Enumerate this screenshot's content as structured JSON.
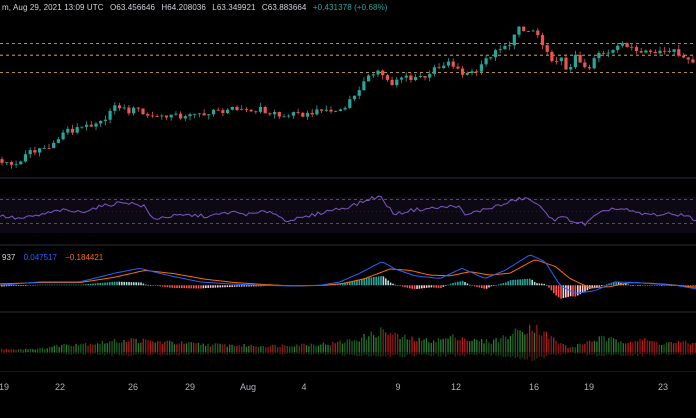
{
  "header": {
    "title_fragment": "m, Aug 29, 2021 13:09 UTC",
    "open": "O63.456646",
    "high": "H64.208036",
    "low": "L63.349921",
    "close": "C63.883664",
    "change": "+0.431378 (+0.68%)"
  },
  "macd_header": {
    "prefix": "937",
    "macd": "0.047517",
    "signal": "−0.184421"
  },
  "colors": {
    "up": "#26a69a",
    "down": "#ef5350",
    "rsi": "#7e57c2",
    "macd": "#2962ff",
    "signal": "#ff6d00",
    "level": "#f0c040",
    "axis_text": "#b2b5be"
  },
  "x_axis": {
    "ticks": [
      "19",
      "22",
      "26",
      "29",
      "Aug",
      "4",
      "9",
      "12",
      "16",
      "19",
      "23"
    ]
  },
  "chart_data": {
    "type": "candlestick",
    "price_levels": [
      68.5,
      66.9,
      64.5
    ],
    "price_path": [
      [
        0,
        52.5
      ],
      [
        7,
        52.2
      ],
      [
        12,
        51.9
      ],
      [
        18,
        51.6
      ],
      [
        23,
        52.0
      ],
      [
        29,
        52.8
      ],
      [
        35,
        53.6
      ],
      [
        40,
        53.4
      ],
      [
        45,
        54.1
      ],
      [
        50,
        54.0
      ],
      [
        55,
        54.5
      ],
      [
        62,
        54.9
      ],
      [
        66,
        55.9
      ],
      [
        70,
        56.7
      ],
      [
        76,
        56.1
      ],
      [
        81,
        56.9
      ],
      [
        85,
        57.3
      ],
      [
        89,
        57.0
      ],
      [
        95,
        56.8
      ],
      [
        101,
        57.2
      ],
      [
        106,
        57.6
      ],
      [
        112,
        58.6
      ],
      [
        117,
        59.5
      ],
      [
        122,
        59.8
      ],
      [
        127,
        59.7
      ],
      [
        131,
        59.2
      ],
      [
        136,
        59.0
      ],
      [
        142,
        59.9
      ],
      [
        145,
        59.4
      ],
      [
        150,
        58.4
      ],
      [
        155,
        58.6
      ],
      [
        162,
        58.5
      ],
      [
        168,
        58.5
      ],
      [
        174,
        58.6
      ],
      [
        180,
        58.5
      ],
      [
        186,
        58.3
      ],
      [
        191,
        58.7
      ],
      [
        197,
        58.4
      ],
      [
        203,
        58.7
      ],
      [
        208,
        58.9
      ],
      [
        214,
        58.7
      ],
      [
        220,
        59.3
      ],
      [
        225,
        59.0
      ],
      [
        231,
        59.4
      ],
      [
        237,
        59.4
      ],
      [
        242,
        59.0
      ],
      [
        248,
        59.6
      ],
      [
        253,
        59.3
      ],
      [
        258,
        59.0
      ],
      [
        263,
        59.7
      ],
      [
        268,
        59.1
      ],
      [
        274,
        58.8
      ],
      [
        279,
        59.0
      ],
      [
        285,
        58.2
      ],
      [
        290,
        58.5
      ],
      [
        296,
        58.8
      ],
      [
        301,
        58.6
      ],
      [
        306,
        58.6
      ],
      [
        313,
        58.8
      ],
      [
        319,
        59.1
      ],
      [
        324,
        59.0
      ],
      [
        330,
        59.5
      ],
      [
        336,
        59.0
      ],
      [
        342,
        59.3
      ],
      [
        347,
        59.5
      ],
      [
        352,
        60.3
      ],
      [
        357,
        61.0
      ],
      [
        362,
        61.9
      ],
      [
        367,
        62.8
      ],
      [
        372,
        63.6
      ],
      [
        377,
        64.2
      ],
      [
        382,
        65.2
      ],
      [
        388,
        64.0
      ],
      [
        392,
        63.6
      ],
      [
        396,
        62.5
      ],
      [
        401,
        63.3
      ],
      [
        406,
        63.7
      ],
      [
        411,
        64.0
      ],
      [
        416,
        63.7
      ],
      [
        422,
        64.0
      ],
      [
        428,
        63.9
      ],
      [
        433,
        64.3
      ],
      [
        438,
        64.9
      ],
      [
        443,
        65.0
      ],
      [
        448,
        65.3
      ],
      [
        453,
        65.8
      ],
      [
        458,
        65.4
      ],
      [
        462,
        64.9
      ],
      [
        467,
        64.2
      ],
      [
        472,
        64.6
      ],
      [
        477,
        64.6
      ],
      [
        482,
        65.0
      ],
      [
        487,
        65.9
      ],
      [
        492,
        66.3
      ],
      [
        496,
        66.9
      ],
      [
        501,
        67.4
      ],
      [
        506,
        67.7
      ],
      [
        511,
        68.1
      ],
      [
        516,
        68.8
      ],
      [
        520,
        69.9
      ],
      [
        524,
        70.6
      ],
      [
        528,
        70.2
      ],
      [
        533,
        70.2
      ],
      [
        537,
        70.3
      ],
      [
        542,
        69.8
      ],
      [
        546,
        68.2
      ],
      [
        551,
        67.2
      ],
      [
        556,
        66.5
      ],
      [
        561,
        65.8
      ],
      [
        565,
        66.6
      ],
      [
        570,
        65.0
      ],
      [
        575,
        65.4
      ],
      [
        580,
        66.6
      ],
      [
        585,
        65.8
      ],
      [
        590,
        65.0
      ],
      [
        596,
        65.0
      ],
      [
        600,
        66.8
      ],
      [
        606,
        67.4
      ],
      [
        611,
        67.3
      ],
      [
        616,
        67.7
      ],
      [
        621,
        68.3
      ],
      [
        627,
        68.3
      ],
      [
        632,
        68.1
      ],
      [
        638,
        68.2
      ],
      [
        643,
        67.6
      ],
      [
        648,
        67.6
      ],
      [
        654,
        67.4
      ],
      [
        659,
        67.2
      ],
      [
        664,
        67.6
      ],
      [
        670,
        67.8
      ],
      [
        675,
        67.6
      ],
      [
        681,
        67.3
      ],
      [
        686,
        67.0
      ],
      [
        692,
        66.4
      ],
      [
        696,
        65.9
      ]
    ],
    "rsi_path": [
      [
        0,
        43
      ],
      [
        20,
        38
      ],
      [
        40,
        44
      ],
      [
        60,
        52
      ],
      [
        80,
        49
      ],
      [
        100,
        58
      ],
      [
        112,
        62
      ],
      [
        125,
        66
      ],
      [
        135,
        62
      ],
      [
        145,
        58
      ],
      [
        152,
        38
      ],
      [
        170,
        42
      ],
      [
        190,
        44
      ],
      [
        210,
        42
      ],
      [
        230,
        49
      ],
      [
        250,
        45
      ],
      [
        270,
        51
      ],
      [
        285,
        36
      ],
      [
        300,
        38
      ],
      [
        315,
        45
      ],
      [
        330,
        52
      ],
      [
        345,
        56
      ],
      [
        360,
        64
      ],
      [
        372,
        72
      ],
      [
        380,
        75
      ],
      [
        386,
        62
      ],
      [
        395,
        45
      ],
      [
        410,
        52
      ],
      [
        430,
        55
      ],
      [
        445,
        57
      ],
      [
        458,
        60
      ],
      [
        465,
        43
      ],
      [
        475,
        49
      ],
      [
        490,
        56
      ],
      [
        505,
        62
      ],
      [
        515,
        69
      ],
      [
        525,
        72
      ],
      [
        535,
        65
      ],
      [
        545,
        48
      ],
      [
        555,
        37
      ],
      [
        565,
        40
      ],
      [
        575,
        33
      ],
      [
        585,
        29
      ],
      [
        595,
        42
      ],
      [
        610,
        55
      ],
      [
        625,
        53
      ],
      [
        640,
        46
      ],
      [
        655,
        45
      ],
      [
        670,
        45
      ],
      [
        685,
        45
      ],
      [
        690,
        40
      ],
      [
        696,
        35
      ]
    ],
    "rsi_levels": [
      70,
      30
    ],
    "macd_path": [
      [
        0,
        0.0
      ],
      [
        40,
        0.05
      ],
      [
        80,
        0.05
      ],
      [
        115,
        0.18
      ],
      [
        140,
        0.25
      ],
      [
        170,
        0.14
      ],
      [
        200,
        0.05
      ],
      [
        230,
        0.02
      ],
      [
        260,
        0.0
      ],
      [
        290,
        -0.01
      ],
      [
        320,
        0.0
      ],
      [
        340,
        0.05
      ],
      [
        360,
        0.18
      ],
      [
        382,
        0.35
      ],
      [
        395,
        0.24
      ],
      [
        415,
        0.14
      ],
      [
        440,
        0.1
      ],
      [
        462,
        0.25
      ],
      [
        485,
        0.1
      ],
      [
        505,
        0.22
      ],
      [
        530,
        0.45
      ],
      [
        545,
        0.35
      ],
      [
        560,
        0.0
      ],
      [
        575,
        -0.12
      ],
      [
        595,
        -0.08
      ],
      [
        615,
        0.05
      ],
      [
        635,
        0.04
      ],
      [
        655,
        0.02
      ],
      [
        675,
        0.0
      ],
      [
        696,
        -0.05
      ]
    ],
    "signal_path": [
      [
        0,
        0.02
      ],
      [
        40,
        0.04
      ],
      [
        80,
        0.04
      ],
      [
        115,
        0.12
      ],
      [
        145,
        0.22
      ],
      [
        175,
        0.17
      ],
      [
        205,
        0.09
      ],
      [
        235,
        0.04
      ],
      [
        265,
        0.01
      ],
      [
        295,
        -0.01
      ],
      [
        325,
        0.0
      ],
      [
        345,
        0.03
      ],
      [
        365,
        0.1
      ],
      [
        390,
        0.24
      ],
      [
        410,
        0.22
      ],
      [
        430,
        0.15
      ],
      [
        450,
        0.14
      ],
      [
        470,
        0.2
      ],
      [
        490,
        0.15
      ],
      [
        510,
        0.18
      ],
      [
        535,
        0.38
      ],
      [
        555,
        0.28
      ],
      [
        570,
        0.1
      ],
      [
        590,
        -0.04
      ],
      [
        610,
        -0.02
      ],
      [
        630,
        0.04
      ],
      [
        650,
        0.03
      ],
      [
        670,
        0.01
      ],
      [
        696,
        -0.03
      ]
    ],
    "volume_path": [
      [
        0,
        0.1
      ],
      [
        40,
        0.12
      ],
      [
        60,
        0.25
      ],
      [
        75,
        0.3
      ],
      [
        95,
        0.32
      ],
      [
        115,
        0.4
      ],
      [
        130,
        0.45
      ],
      [
        150,
        0.38
      ],
      [
        170,
        0.35
      ],
      [
        190,
        0.3
      ],
      [
        210,
        0.27
      ],
      [
        230,
        0.25
      ],
      [
        250,
        0.23
      ],
      [
        270,
        0.22
      ],
      [
        290,
        0.26
      ],
      [
        310,
        0.28
      ],
      [
        330,
        0.3
      ],
      [
        350,
        0.42
      ],
      [
        368,
        0.58
      ],
      [
        382,
        0.78
      ],
      [
        398,
        0.55
      ],
      [
        420,
        0.42
      ],
      [
        440,
        0.45
      ],
      [
        458,
        0.58
      ],
      [
        470,
        0.42
      ],
      [
        490,
        0.38
      ],
      [
        505,
        0.55
      ],
      [
        520,
        0.8
      ],
      [
        532,
        0.95
      ],
      [
        545,
        0.65
      ],
      [
        560,
        0.3
      ],
      [
        570,
        0.15
      ],
      [
        585,
        0.35
      ],
      [
        600,
        0.5
      ],
      [
        620,
        0.4
      ],
      [
        640,
        0.45
      ],
      [
        660,
        0.32
      ],
      [
        680,
        0.35
      ],
      [
        696,
        0.3
      ]
    ]
  }
}
